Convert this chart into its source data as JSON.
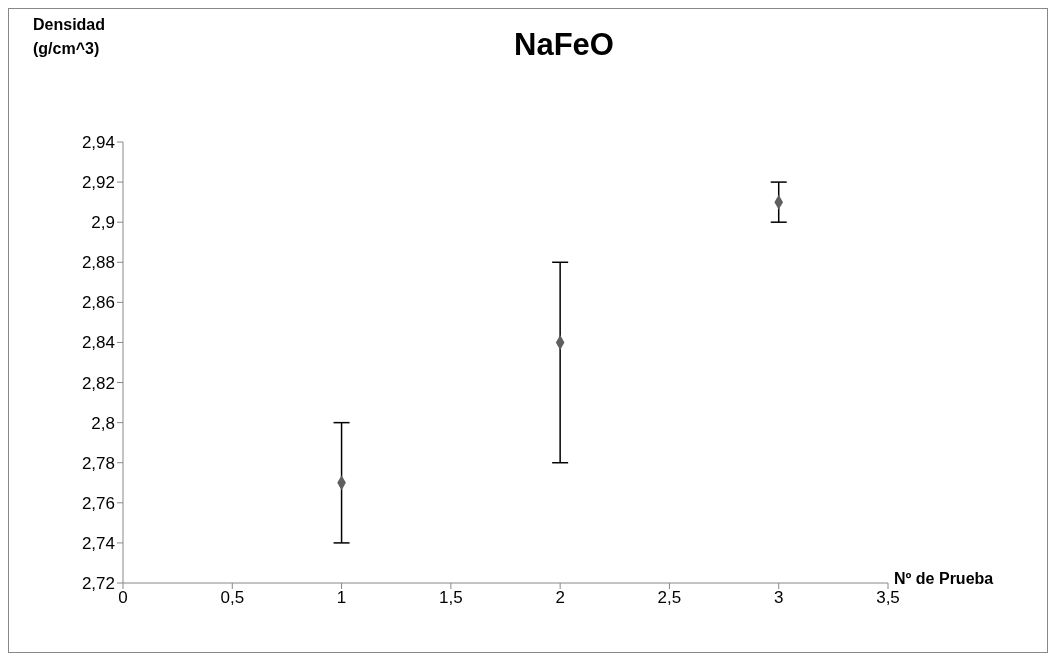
{
  "chart_data": {
    "type": "scatter",
    "title": "NaFeO",
    "xlabel": "Nº de Prueba",
    "ylabel": "Densidad (g/cm^3)",
    "x": [
      1,
      2,
      3
    ],
    "series": [
      {
        "color": "#5f5f5f",
        "values": [
          2.77,
          2.84,
          2.91
        ],
        "errors": [
          0.03,
          [
            2.78,
            2.88
          ],
          0.01
        ]
      }
    ],
    "marker": "diamond",
    "xlim": [
      0,
      3.5
    ],
    "xticks": [
      0,
      {
        "value": 0.5,
        "label": "0,5"
      },
      1,
      {
        "value": 1.5,
        "label": "1,5"
      },
      2,
      {
        "value": 2.5,
        "label": "2,5"
      },
      3,
      {
        "value": 3.5,
        "label": "3,5"
      }
    ],
    "ylim": [
      2.72,
      2.94
    ],
    "yticks": [
      {
        "value": 2.72,
        "label": "2,72"
      },
      {
        "value": 2.74,
        "label": "2,74"
      },
      {
        "value": 2.76,
        "label": "2,76"
      },
      {
        "value": 2.78,
        "label": "2,78"
      },
      {
        "value": 2.8,
        "label": "2,8"
      },
      {
        "value": 2.82,
        "label": "2,82"
      },
      {
        "value": 2.84,
        "label": "2,84"
      },
      {
        "value": 2.86,
        "label": "2,86"
      },
      {
        "value": 2.88,
        "label": "2,88"
      },
      {
        "value": 2.9,
        "label": "2,9"
      },
      {
        "value": 2.92,
        "label": "2,92"
      },
      {
        "value": 2.94,
        "label": "2,94"
      }
    ]
  }
}
